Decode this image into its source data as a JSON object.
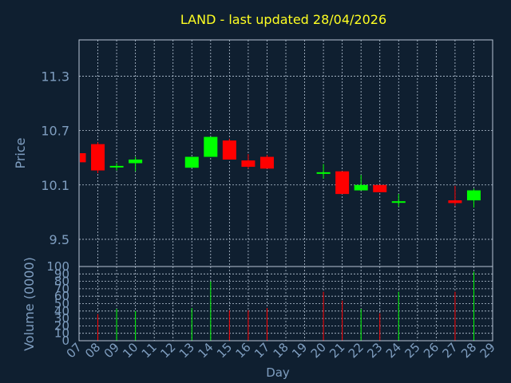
{
  "chart_data": {
    "type": "candlestick",
    "title": "LAND - last updated 28/04/2026",
    "xlabel": "Day",
    "ylabel": "Price",
    "volume_label": "Volume (0000)",
    "x_ticks": [
      "07",
      "08",
      "09",
      "10",
      "11",
      "12",
      "13",
      "14",
      "15",
      "16",
      "17",
      "18",
      "19",
      "20",
      "21",
      "22",
      "23",
      "24",
      "25",
      "26",
      "27",
      "28",
      "29"
    ],
    "y_ticks": [
      "9.5",
      "10.1",
      "10.7",
      "11.3"
    ],
    "volume_ticks": [
      "0",
      "10",
      "20",
      "30",
      "40",
      "50",
      "60",
      "70",
      "80",
      "90",
      "100"
    ],
    "price_ylim": [
      9.2,
      11.7
    ],
    "volume_ylim": [
      0,
      100
    ],
    "grid": true,
    "colors": {
      "up": "#00ff00",
      "down": "#ff0000",
      "title": "#ffff22",
      "axis": "#7f9ec0",
      "background": "#0f1f30"
    },
    "candles": [
      {
        "day": "07",
        "open": 10.45,
        "high": 10.45,
        "low": 10.35,
        "close": 10.35
      },
      {
        "day": "08",
        "open": 10.55,
        "high": 10.57,
        "low": 10.23,
        "close": 10.26
      },
      {
        "day": "09",
        "open": 10.3,
        "high": 10.34,
        "low": 10.26,
        "close": 10.31
      },
      {
        "day": "10",
        "open": 10.34,
        "high": 10.41,
        "low": 10.25,
        "close": 10.38
      },
      {
        "day": "13",
        "open": 10.29,
        "high": 10.41,
        "low": 10.29,
        "close": 10.41
      },
      {
        "day": "14",
        "open": 10.41,
        "high": 10.63,
        "low": 10.41,
        "close": 10.63
      },
      {
        "day": "15",
        "open": 10.59,
        "high": 10.61,
        "low": 10.38,
        "close": 10.38
      },
      {
        "day": "16",
        "open": 10.37,
        "high": 10.44,
        "low": 10.28,
        "close": 10.3
      },
      {
        "day": "17",
        "open": 10.41,
        "high": 10.43,
        "low": 10.28,
        "close": 10.28
      },
      {
        "day": "20",
        "open": 10.24,
        "high": 10.33,
        "low": 10.17,
        "close": 10.24
      },
      {
        "day": "21",
        "open": 10.25,
        "high": 10.25,
        "low": 10.0,
        "close": 10.0
      },
      {
        "day": "22",
        "open": 10.04,
        "high": 10.21,
        "low": 10.04,
        "close": 10.1
      },
      {
        "day": "23",
        "open": 10.1,
        "high": 10.1,
        "low": 10.02,
        "close": 10.02
      },
      {
        "day": "24",
        "open": 9.92,
        "high": 10.0,
        "low": 9.86,
        "close": 9.92
      },
      {
        "day": "27",
        "open": 9.93,
        "high": 10.09,
        "low": 9.87,
        "close": 9.9
      },
      {
        "day": "28",
        "open": 9.93,
        "high": 10.06,
        "low": 9.85,
        "close": 10.04
      }
    ],
    "volume": [
      {
        "day": "08",
        "value": 36,
        "color": "down"
      },
      {
        "day": "09",
        "value": 43,
        "color": "up"
      },
      {
        "day": "10",
        "value": 40,
        "color": "up"
      },
      {
        "day": "13",
        "value": 44,
        "color": "up"
      },
      {
        "day": "14",
        "value": 80,
        "color": "up"
      },
      {
        "day": "15",
        "value": 41,
        "color": "down"
      },
      {
        "day": "16",
        "value": 41,
        "color": "down"
      },
      {
        "day": "17",
        "value": 44,
        "color": "down"
      },
      {
        "day": "20",
        "value": 66,
        "color": "down"
      },
      {
        "day": "21",
        "value": 54,
        "color": "down"
      },
      {
        "day": "22",
        "value": 43,
        "color": "up"
      },
      {
        "day": "23",
        "value": 37,
        "color": "down"
      },
      {
        "day": "24",
        "value": 66,
        "color": "up"
      },
      {
        "day": "27",
        "value": 66,
        "color": "down"
      },
      {
        "day": "28",
        "value": 93,
        "color": "up"
      }
    ]
  }
}
